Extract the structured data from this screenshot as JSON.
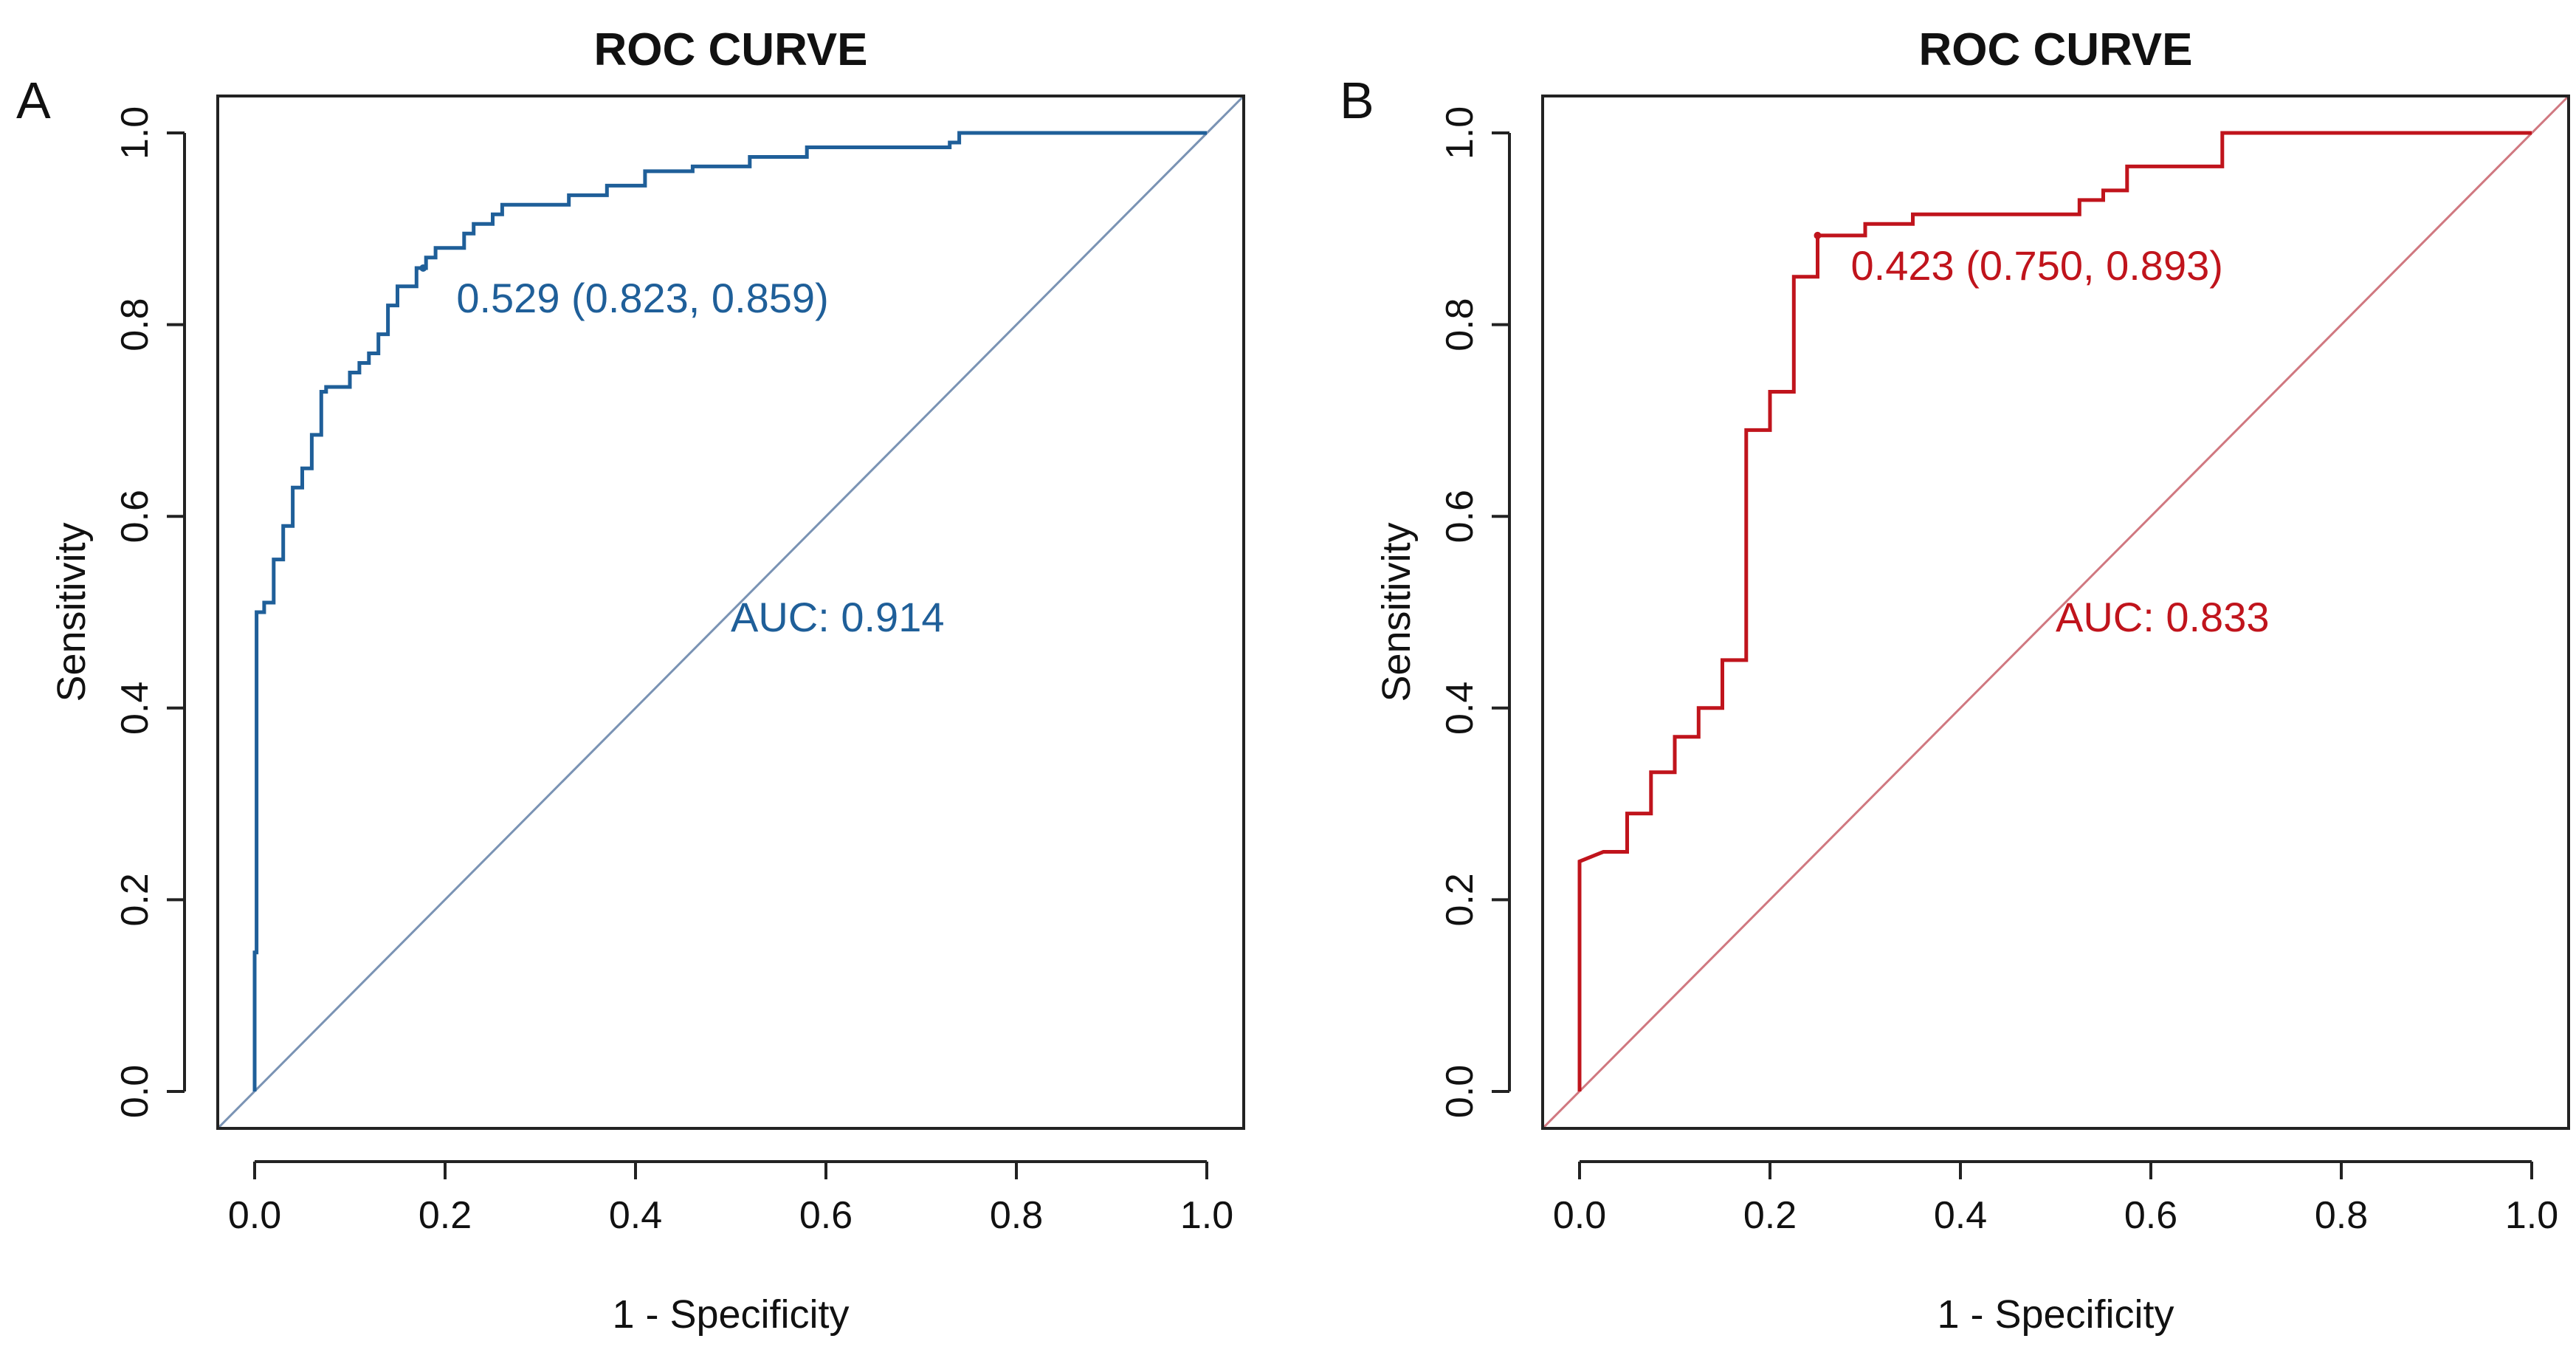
{
  "chart_data": [
    {
      "panel_label": "A",
      "type": "line",
      "title": "ROC CURVE",
      "xlabel": "1 - Specificity",
      "ylabel": "Sensitivity",
      "xlim": [
        0,
        1
      ],
      "ylim": [
        0,
        1
      ],
      "xticks": [
        "0.0",
        "0.2",
        "0.4",
        "0.6",
        "0.8",
        "1.0"
      ],
      "yticks": [
        "0.0",
        "0.2",
        "0.4",
        "0.6",
        "0.8",
        "1.0"
      ],
      "color": "#1f5f99",
      "diagonal_color": "#7a93b4",
      "auc_text": "AUC: 0.914",
      "auc_position": [
        0.5,
        0.48
      ],
      "threshold_text": "0.529 (0.823, 0.859)",
      "threshold_point": [
        0.177,
        0.859
      ],
      "series": [
        {
          "name": "ROC",
          "x": [
            0,
            0,
            0.002,
            0.002,
            0.01,
            0.01,
            0.012,
            0.02,
            0.02,
            0.03,
            0.03,
            0.04,
            0.04,
            0.05,
            0.05,
            0.06,
            0.06,
            0.07,
            0.07,
            0.075,
            0.075,
            0.1,
            0.1,
            0.11,
            0.11,
            0.12,
            0.12,
            0.13,
            0.13,
            0.14,
            0.14,
            0.15,
            0.15,
            0.17,
            0.17,
            0.18,
            0.18,
            0.19,
            0.19,
            0.22,
            0.22,
            0.23,
            0.23,
            0.25,
            0.25,
            0.26,
            0.26,
            0.33,
            0.33,
            0.37,
            0.37,
            0.41,
            0.41,
            0.46,
            0.46,
            0.52,
            0.52,
            0.58,
            0.58,
            0.73,
            0.73,
            0.74,
            0.74,
            1.0
          ],
          "y": [
            0,
            0.145,
            0.145,
            0.5,
            0.5,
            0.51,
            0.51,
            0.51,
            0.555,
            0.555,
            0.59,
            0.59,
            0.63,
            0.63,
            0.65,
            0.65,
            0.685,
            0.685,
            0.73,
            0.73,
            0.735,
            0.735,
            0.75,
            0.75,
            0.76,
            0.76,
            0.77,
            0.77,
            0.79,
            0.79,
            0.82,
            0.82,
            0.84,
            0.84,
            0.859,
            0.859,
            0.87,
            0.87,
            0.88,
            0.88,
            0.895,
            0.895,
            0.905,
            0.905,
            0.915,
            0.915,
            0.925,
            0.925,
            0.935,
            0.935,
            0.945,
            0.945,
            0.96,
            0.96,
            0.965,
            0.965,
            0.975,
            0.975,
            0.985,
            0.985,
            0.99,
            0.99,
            1.0,
            1.0
          ]
        }
      ]
    },
    {
      "panel_label": "B",
      "type": "line",
      "title": "ROC CURVE",
      "xlabel": "1 - Specificity",
      "ylabel": "Sensitivity",
      "xlim": [
        0,
        1
      ],
      "ylim": [
        0,
        1
      ],
      "xticks": [
        "0.0",
        "0.2",
        "0.4",
        "0.6",
        "0.8",
        "1.0"
      ],
      "yticks": [
        "0.0",
        "0.2",
        "0.4",
        "0.6",
        "0.8",
        "1.0"
      ],
      "color": "#c0141c",
      "diagonal_color": "#d07880",
      "auc_text": "AUC: 0.833",
      "auc_position": [
        0.5,
        0.48
      ],
      "threshold_text": "0.423 (0.750, 0.893)",
      "threshold_point": [
        0.25,
        0.893
      ],
      "series": [
        {
          "name": "ROC",
          "x": [
            0,
            0,
            0.025,
            0.025,
            0.05,
            0.05,
            0.075,
            0.075,
            0.1,
            0.1,
            0.125,
            0.125,
            0.15,
            0.15,
            0.175,
            0.175,
            0.2,
            0.2,
            0.225,
            0.225,
            0.25,
            0.25,
            0.3,
            0.3,
            0.35,
            0.35,
            0.525,
            0.525,
            0.55,
            0.55,
            0.575,
            0.575,
            0.675,
            0.675,
            1.0
          ],
          "y": [
            0,
            0.24,
            0.25,
            0.25,
            0.25,
            0.29,
            0.29,
            0.333,
            0.333,
            0.37,
            0.37,
            0.4,
            0.4,
            0.45,
            0.45,
            0.69,
            0.69,
            0.73,
            0.73,
            0.85,
            0.85,
            0.893,
            0.893,
            0.905,
            0.905,
            0.915,
            0.915,
            0.93,
            0.93,
            0.94,
            0.94,
            0.965,
            0.965,
            1.0,
            1.0
          ]
        }
      ]
    }
  ]
}
